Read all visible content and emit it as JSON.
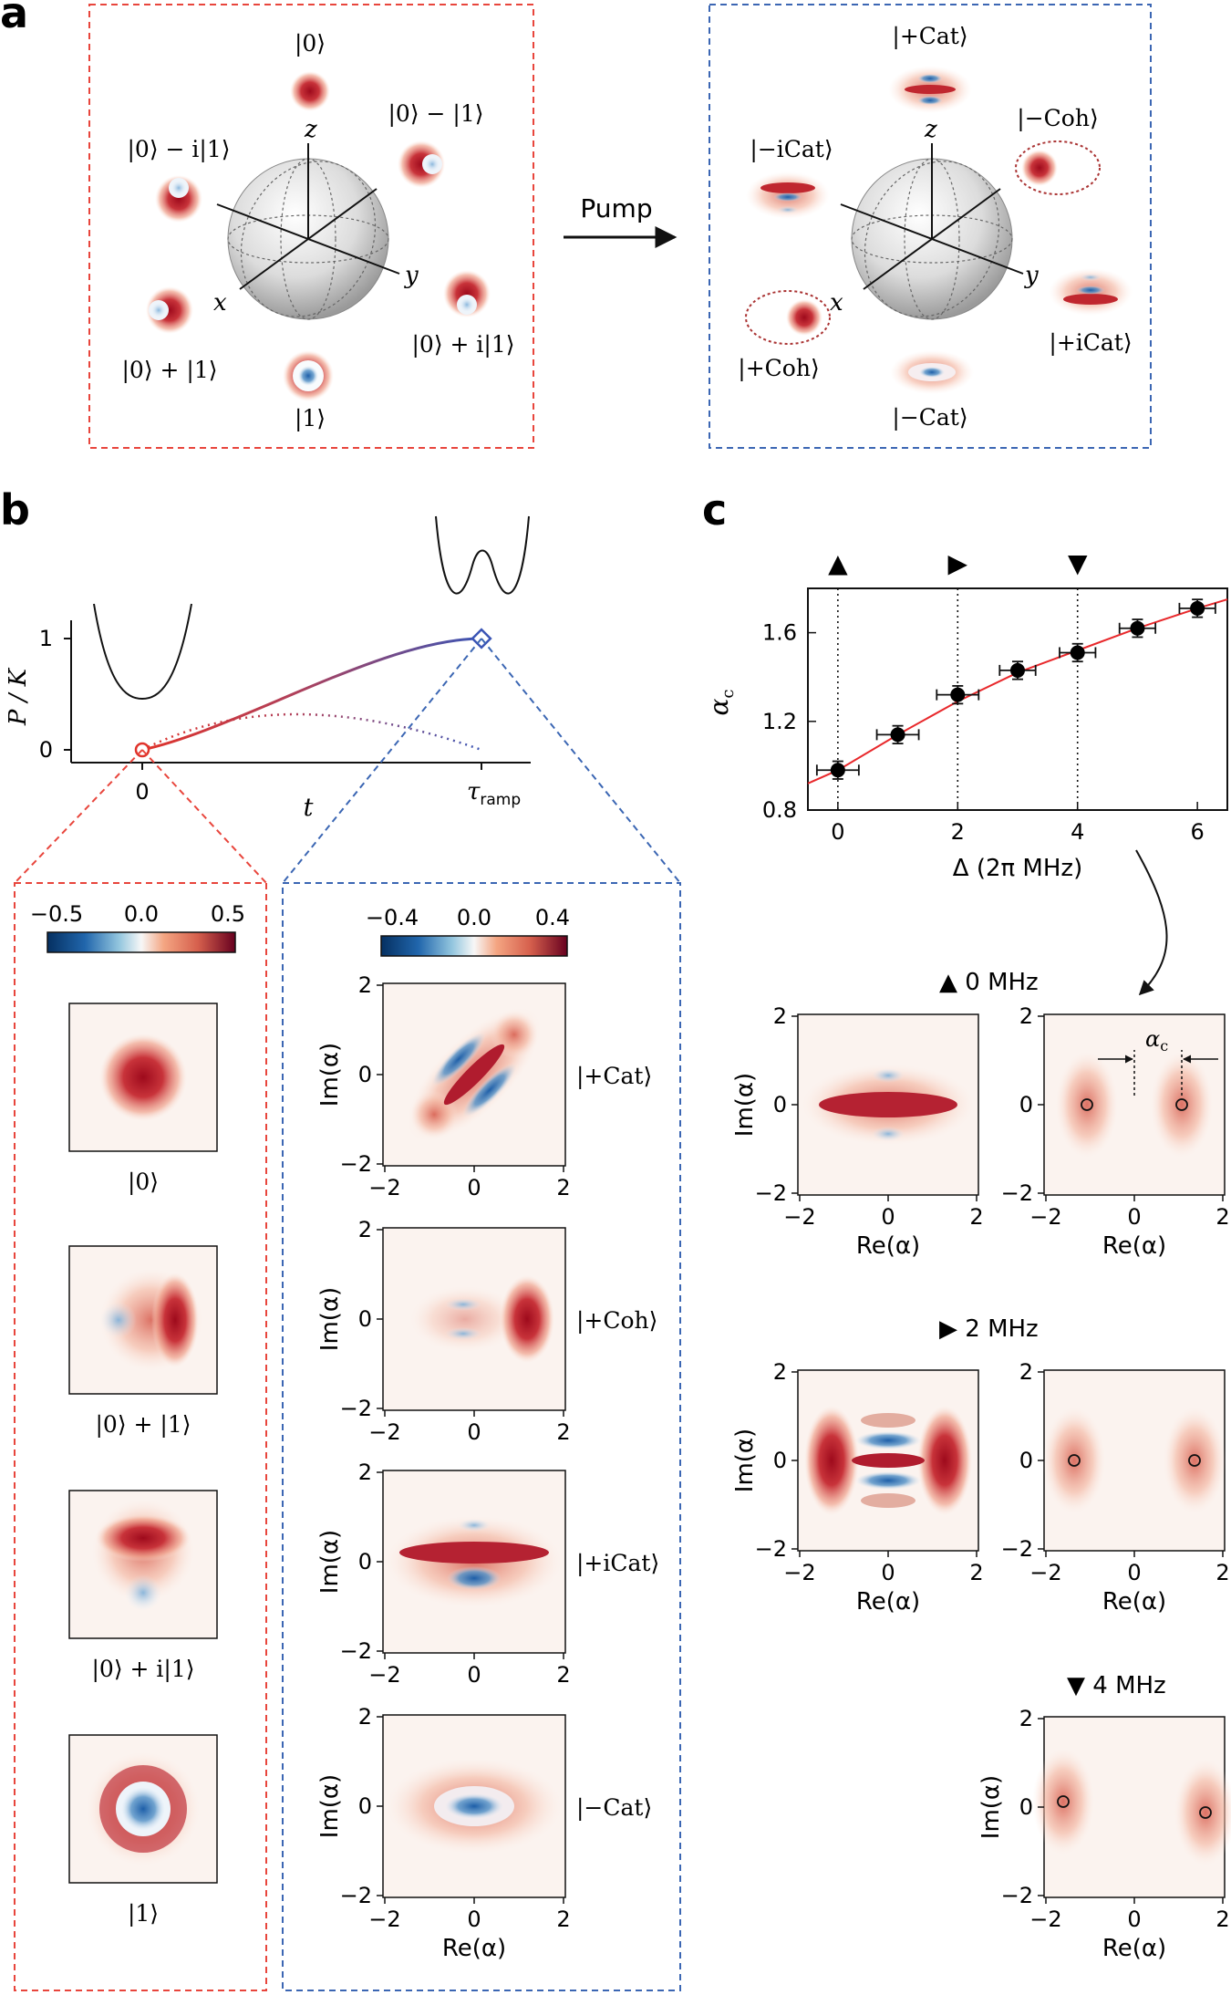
{
  "panel_a": {
    "letter": "a",
    "arrow_label": "Pump",
    "left_box": {
      "axes": {
        "x": "x",
        "y": "y",
        "z": "z"
      },
      "states": {
        "zero": "|0⟩",
        "minus": "|0⟩ − |1⟩",
        "minus_i": "|0⟩ − i|1⟩",
        "plus": "|0⟩ + |1⟩",
        "plus_i": "|0⟩ + i|1⟩",
        "one": "|1⟩"
      }
    },
    "right_box": {
      "axes": {
        "x": "x",
        "y": "y",
        "z": "z"
      },
      "states": {
        "plus_cat": "|+Cat⟩",
        "minus_icat": "|−iCat⟩",
        "minus_coh": "|−Coh⟩",
        "plus_coh": "|+Coh⟩",
        "plus_icat": "|+iCat⟩",
        "minus_cat": "|−Cat⟩"
      }
    }
  },
  "panel_b": {
    "letter": "b",
    "ramp_plot": {
      "ylabel": "P / K",
      "yticks": [
        "1",
        "0"
      ],
      "xticks": [
        "0",
        "τ"
      ],
      "xtick_sub": "ramp",
      "xlabel": "t"
    },
    "left_colorbar": {
      "ticks": [
        "−0.5",
        "0.0",
        "0.5"
      ]
    },
    "right_colorbar": {
      "ticks": [
        "−0.4",
        "0.0",
        "0.4"
      ]
    },
    "left_states": [
      "|0⟩",
      "|0⟩ + |1⟩",
      "|0⟩ + i|1⟩",
      "|1⟩"
    ],
    "right_states": [
      "|+Cat⟩",
      "|+Coh⟩",
      "|+iCat⟩",
      "|−Cat⟩"
    ],
    "map_axes": {
      "ylabel": "Im(α)",
      "xlabel": "Re(α)",
      "ticks": [
        "−2",
        "0",
        "2"
      ]
    }
  },
  "panel_c": {
    "letter": "c",
    "chart_data": {
      "type": "scatter",
      "title": "",
      "xlabel": "Δ (2π MHz)",
      "ylabel": "α",
      "ylabel_sub": "c",
      "x": [
        0,
        1,
        2,
        3,
        4,
        5,
        6
      ],
      "y": [
        0.98,
        1.14,
        1.32,
        1.43,
        1.51,
        1.62,
        1.71
      ],
      "yerr": [
        0.04,
        0.04,
        0.04,
        0.04,
        0.04,
        0.04,
        0.04
      ],
      "xerr": [
        0.35,
        0.35,
        0.35,
        0.3,
        0.3,
        0.3,
        0.3
      ],
      "fit_x": [
        -0.5,
        0,
        1,
        2,
        3,
        4,
        5,
        6,
        6.5
      ],
      "fit_y": [
        0.92,
        0.98,
        1.14,
        1.29,
        1.42,
        1.52,
        1.62,
        1.71,
        1.75
      ],
      "xlim": [
        -0.5,
        6.5
      ],
      "ylim": [
        0.8,
        1.8
      ],
      "xticks": [
        "0",
        "2",
        "4",
        "6"
      ],
      "yticks": [
        "0.8",
        "1.2",
        "1.6"
      ],
      "markers": [
        {
          "x": 0,
          "symbol": "▲"
        },
        {
          "x": 2,
          "symbol": "▶"
        },
        {
          "x": 4,
          "symbol": "▼"
        }
      ],
      "fit_color": "#e8282b",
      "point_color": "#000000"
    },
    "rows": [
      {
        "symbol": "▲",
        "label": "0 MHz"
      },
      {
        "symbol": "▶",
        "label": "2 MHz"
      },
      {
        "symbol": "▼",
        "label": "4 MHz"
      }
    ],
    "alpha_c_label": "α",
    "alpha_c_sub": "c",
    "map_axes": {
      "ylabel": "Im(α)",
      "xlabel": "Re(α)",
      "ticks": [
        "−2",
        "0",
        "2"
      ]
    }
  },
  "colors": {
    "red_box": "#e8453c",
    "blue_box": "#3b66b3",
    "wigner_red": "#b2182b",
    "wigner_blue": "#2166ac",
    "ramp_red": "#e0332b",
    "ramp_blue": "#3b55b5"
  }
}
